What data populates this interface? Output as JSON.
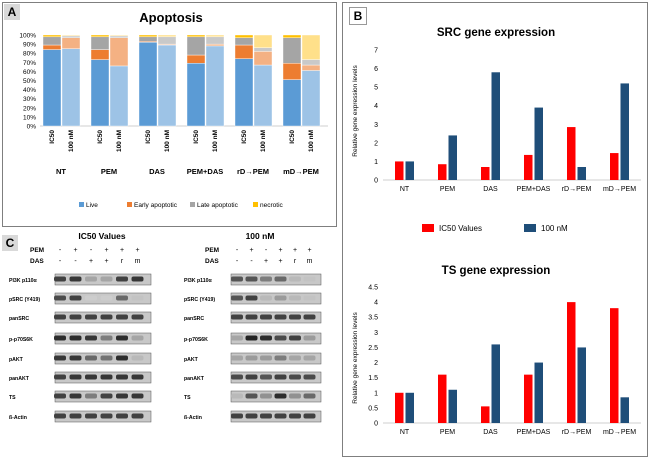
{
  "panels": {
    "a": "A",
    "b": "B",
    "c": "C"
  },
  "chart_data": [
    {
      "type": "bar",
      "stacked": true,
      "title": "Apoptosis",
      "groups": [
        "NT",
        "PEM",
        "DAS",
        "PEM+DAS",
        "rD→PEM",
        "mD→PEM"
      ],
      "bar_labels": [
        "IC50",
        "100 nM"
      ],
      "yticks": [
        "0%",
        "10%",
        "20%",
        "30%",
        "40%",
        "50%",
        "60%",
        "70%",
        "80%",
        "90%",
        "100%"
      ],
      "ylim": [
        0,
        100
      ],
      "legend": [
        "Live",
        "Early apoptotic",
        "Late apoptotic",
        "necrotic"
      ],
      "colors_ic50": [
        "#5b9bd5",
        "#ed7d31",
        "#a5a5a5",
        "#ffc000"
      ],
      "colors_100": [
        "#9dc3e6",
        "#f4b183",
        "#c9c9c9",
        "#ffe08a"
      ],
      "series": [
        {
          "name": "Live",
          "ic50": [
            84,
            73,
            92,
            69,
            74,
            51
          ],
          "nm100": [
            85,
            66,
            89,
            88,
            67,
            61
          ]
        },
        {
          "name": "Early apoptotic",
          "ic50": [
            5,
            11,
            1,
            9,
            15,
            18
          ],
          "nm100": [
            12,
            31,
            1,
            2,
            15,
            6
          ]
        },
        {
          "name": "Late apoptotic",
          "ic50": [
            9,
            14,
            5,
            20,
            8,
            28
          ],
          "nm100": [
            2,
            2,
            8,
            8,
            4,
            6
          ]
        },
        {
          "name": "necrotic",
          "ic50": [
            2,
            2,
            2,
            2,
            3,
            3
          ],
          "nm100": [
            1,
            1,
            2,
            2,
            14,
            27
          ]
        }
      ]
    },
    {
      "type": "bar",
      "title": "SRC gene expression",
      "ylabel": "Relative gene expression levels",
      "categories": [
        "NT",
        "PEM",
        "DAS",
        "PEM+DAS",
        "rD→PEM",
        "mD→PEM"
      ],
      "yticks": [
        "0",
        "1",
        "2",
        "3",
        "4",
        "5",
        "6",
        "7"
      ],
      "ylim": [
        0,
        7
      ],
      "series": [
        {
          "name": "IC50 Values",
          "color": "#ff0000",
          "values": [
            1.0,
            0.85,
            0.7,
            1.35,
            2.85,
            1.45
          ]
        },
        {
          "name": "100 nM",
          "color": "#1f4e79",
          "values": [
            1.0,
            2.4,
            5.8,
            3.9,
            0.7,
            5.2
          ]
        }
      ]
    },
    {
      "type": "bar",
      "title": "TS gene expression",
      "ylabel": "Relative gene expression levels",
      "categories": [
        "NT",
        "PEM",
        "DAS",
        "PEM+DAS",
        "rD→PEM",
        "mD→PEM"
      ],
      "yticks": [
        "0",
        "0.5",
        "1",
        "1.5",
        "2",
        "2.5",
        "3",
        "3.5",
        "4",
        "4.5"
      ],
      "ylim": [
        0,
        4.5
      ],
      "series": [
        {
          "name": "IC50 Values",
          "color": "#ff0000",
          "values": [
            1.0,
            1.6,
            0.55,
            1.6,
            4.0,
            3.8
          ]
        },
        {
          "name": "100 nM",
          "color": "#1f4e79",
          "values": [
            1.0,
            1.1,
            2.6,
            2.0,
            2.5,
            0.85
          ]
        }
      ]
    }
  ],
  "western_blot": {
    "left_title": "IC50 Values",
    "right_title": "100 nM",
    "row_pem": "PEM",
    "row_das": "DAS",
    "pem_signs": [
      "-",
      "+",
      "-",
      "+",
      "+",
      "+"
    ],
    "das_signs": [
      "-",
      "-",
      "+",
      "+",
      "r",
      "m"
    ],
    "proteins": [
      "PI3K p110α",
      "pSRC (Y419)",
      "panSRC",
      "p-p70S6K",
      "pAKT",
      "panAKT",
      "TS",
      "ß-Actin"
    ],
    "left_intensity": [
      [
        0.8,
        0.85,
        0.3,
        0.3,
        0.8,
        0.85
      ],
      [
        0.75,
        0.8,
        0.1,
        0.1,
        0.6,
        0.15
      ],
      [
        0.8,
        0.8,
        0.8,
        0.8,
        0.8,
        0.8
      ],
      [
        0.9,
        0.9,
        0.85,
        0.5,
        0.9,
        0.3
      ],
      [
        0.85,
        0.85,
        0.6,
        0.55,
        0.9,
        0.2
      ],
      [
        0.8,
        0.85,
        0.85,
        0.85,
        0.85,
        0.85
      ],
      [
        0.8,
        0.85,
        0.5,
        0.8,
        0.85,
        0.85
      ],
      [
        0.8,
        0.8,
        0.8,
        0.8,
        0.8,
        0.8
      ]
    ],
    "right_intensity": [
      [
        0.7,
        0.7,
        0.5,
        0.6,
        0.2,
        0.15
      ],
      [
        0.7,
        0.8,
        0.2,
        0.35,
        0.2,
        0.15
      ],
      [
        0.8,
        0.8,
        0.8,
        0.8,
        0.8,
        0.8
      ],
      [
        0.3,
        0.95,
        0.9,
        0.75,
        0.8,
        0.35
      ],
      [
        0.3,
        0.35,
        0.35,
        0.5,
        0.3,
        0.3
      ],
      [
        0.75,
        0.8,
        0.7,
        0.8,
        0.75,
        0.75
      ],
      [
        0.2,
        0.7,
        0.4,
        0.9,
        0.4,
        0.6
      ],
      [
        0.8,
        0.8,
        0.8,
        0.8,
        0.8,
        0.8
      ]
    ]
  }
}
